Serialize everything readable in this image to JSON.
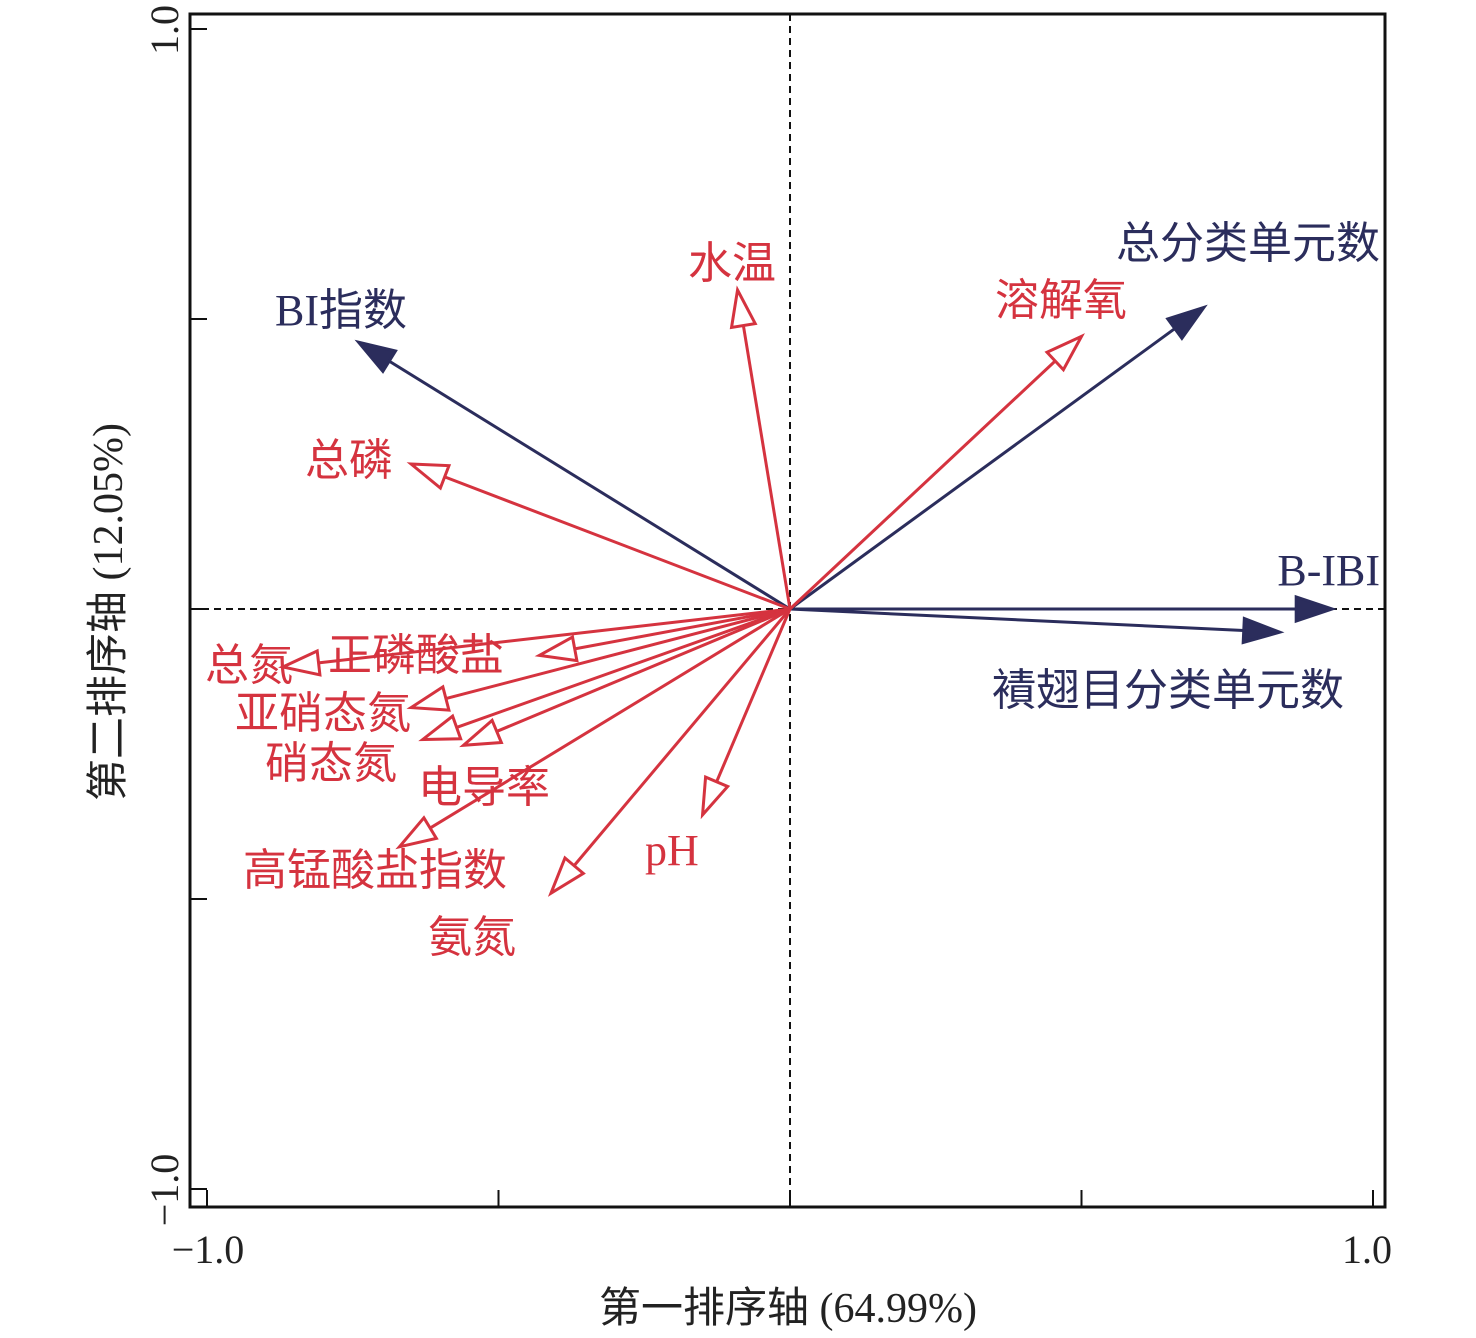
{
  "chart_data": {
    "type": "biplot",
    "xlabel": "第一排序轴 (64.99%)",
    "ylabel": "第二排序轴 (12.05%)",
    "xlim": [
      -1.0,
      1.0
    ],
    "ylim": [
      -1.0,
      1.0
    ],
    "x_tick_labels": [
      "−1.0",
      "1.0"
    ],
    "y_tick_labels": [
      "1.0",
      "−1.0"
    ],
    "ticks": [
      -1.0,
      -0.5,
      0,
      0.5,
      1.0
    ],
    "colors": {
      "response": "#2b2d5c",
      "environment": "#d5333f"
    },
    "series": [
      {
        "name": "B-IBI",
        "group": "response",
        "x": 0.93,
        "y": 0.0
      },
      {
        "name": "襀翅目分类单元数",
        "group": "response",
        "x": 0.84,
        "y": -0.04
      },
      {
        "name": "总分类单元数",
        "group": "response",
        "x": 0.71,
        "y": 0.52
      },
      {
        "name": "BI指数",
        "group": "response",
        "x": -0.74,
        "y": 0.46
      },
      {
        "name": "水温",
        "group": "environment",
        "x": -0.09,
        "y": 0.55
      },
      {
        "name": "溶解氧",
        "group": "environment",
        "x": 0.5,
        "y": 0.47
      },
      {
        "name": "总磷",
        "group": "environment",
        "x": -0.65,
        "y": 0.25
      },
      {
        "name": "总氮",
        "group": "environment",
        "x": -0.87,
        "y": -0.1
      },
      {
        "name": "正磷酸盐",
        "group": "environment",
        "x": -0.43,
        "y": -0.08
      },
      {
        "name": "亚硝态氮",
        "group": "environment",
        "x": -0.65,
        "y": -0.17
      },
      {
        "name": "硝态氮",
        "group": "environment",
        "x": -0.63,
        "y": -0.225
      },
      {
        "name": "电导率",
        "group": "environment",
        "x": -0.56,
        "y": -0.235
      },
      {
        "name": "高锰酸盐指数",
        "group": "environment",
        "x": -0.67,
        "y": -0.41
      },
      {
        "name": "氨氮",
        "group": "environment",
        "x": -0.41,
        "y": -0.49
      },
      {
        "name": "pH",
        "group": "environment",
        "x": -0.15,
        "y": -0.355
      }
    ]
  }
}
